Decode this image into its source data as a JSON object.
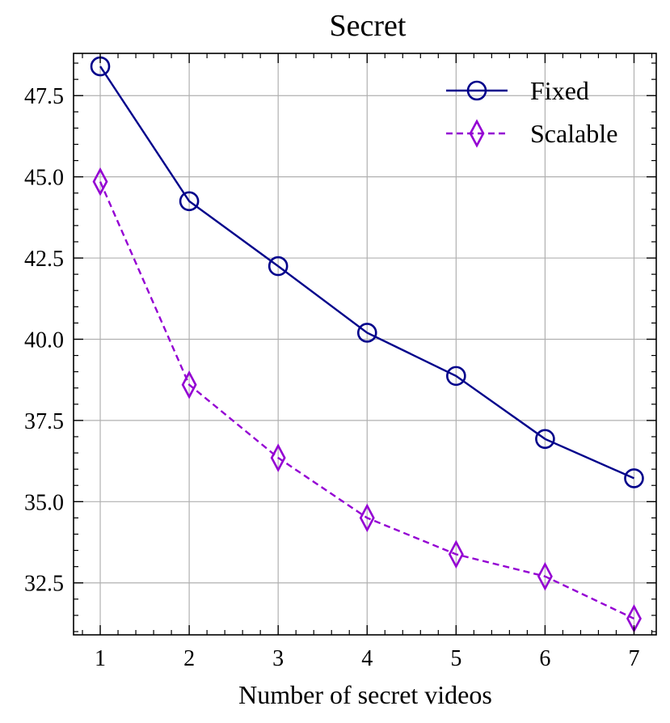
{
  "chart_data": {
    "type": "line",
    "title": "Secret",
    "xlabel": "Number of secret videos",
    "ylabel": "",
    "x": [
      1,
      2,
      3,
      4,
      5,
      6,
      7
    ],
    "xlim": [
      0.7,
      7.25
    ],
    "ylim": [
      30.9,
      48.8
    ],
    "xticks": [
      1,
      2,
      3,
      4,
      5,
      6,
      7
    ],
    "xtick_labels": [
      "1",
      "2",
      "3",
      "4",
      "5",
      "6",
      "7"
    ],
    "yticks": [
      32.5,
      35.0,
      37.5,
      40.0,
      42.5,
      45.0,
      47.5
    ],
    "ytick_labels": [
      "32.5",
      "35.0",
      "37.5",
      "40.0",
      "42.5",
      "45.0",
      "47.5"
    ],
    "grid": true,
    "legend_position": "top-right",
    "series": [
      {
        "name": "Fixed",
        "values": [
          48.4,
          44.25,
          42.25,
          40.2,
          38.87,
          36.93,
          35.72
        ],
        "color": "#00008b",
        "marker": "circle",
        "linestyle": "solid"
      },
      {
        "name": "Scalable",
        "values": [
          44.85,
          38.6,
          36.35,
          34.5,
          33.38,
          32.7,
          31.4
        ],
        "color": "#9400d3",
        "marker": "diamond",
        "linestyle": "dashed"
      }
    ]
  }
}
